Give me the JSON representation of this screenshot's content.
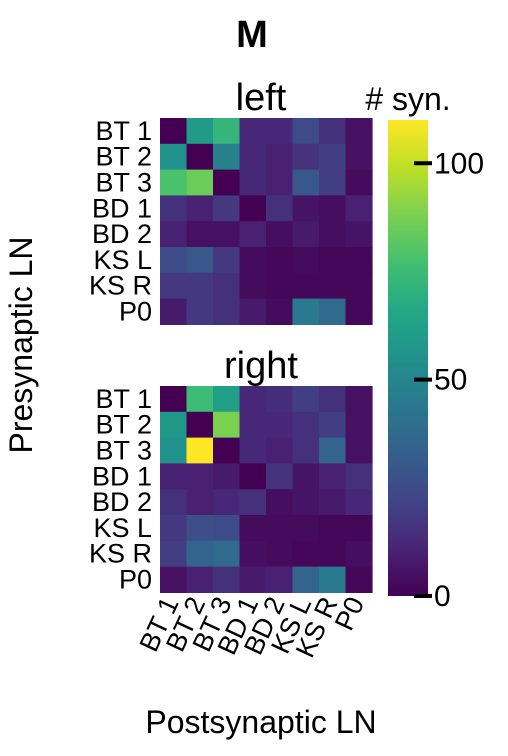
{
  "panel_letter": "M",
  "colorbar": {
    "title": "# syn.",
    "colormap": "viridis",
    "range": [
      0,
      110
    ],
    "ticks": [
      0,
      50,
      100
    ]
  },
  "axes": {
    "ylabel": "Presynaptic LN",
    "xlabel": "Postsynaptic LN"
  },
  "chart_data": {
    "type": "heatmap",
    "rows": [
      "BT 1",
      "BT 2",
      "BT 3",
      "BD 1",
      "BD 2",
      "KS L",
      "KS R",
      "P0"
    ],
    "columns": [
      "BT 1",
      "BT 2",
      "BT 3",
      "BD 1",
      "BD 2",
      "KS L",
      "KS R",
      "P0"
    ],
    "vmin": 0,
    "vmax": 110,
    "matrices": [
      {
        "title": "left",
        "values": [
          [
            0,
            60,
            72,
            12,
            12,
            25,
            15,
            5
          ],
          [
            55,
            0,
            48,
            12,
            10,
            16,
            20,
            5
          ],
          [
            78,
            85,
            0,
            12,
            10,
            30,
            20,
            3
          ],
          [
            15,
            10,
            18,
            0,
            15,
            6,
            4,
            10
          ],
          [
            10,
            5,
            5,
            10,
            4,
            8,
            4,
            6
          ],
          [
            25,
            30,
            18,
            3,
            2,
            3,
            2,
            2
          ],
          [
            18,
            18,
            15,
            3,
            2,
            2,
            2,
            2
          ],
          [
            8,
            18,
            15,
            8,
            3,
            45,
            38,
            2
          ]
        ]
      },
      {
        "title": "right",
        "values": [
          [
            0,
            75,
            62,
            12,
            14,
            20,
            15,
            5
          ],
          [
            58,
            0,
            88,
            12,
            12,
            15,
            20,
            5
          ],
          [
            55,
            110,
            0,
            12,
            10,
            15,
            35,
            5
          ],
          [
            10,
            10,
            8,
            0,
            16,
            6,
            10,
            15
          ],
          [
            15,
            10,
            12,
            15,
            4,
            6,
            8,
            12
          ],
          [
            18,
            26,
            25,
            3,
            3,
            3,
            2,
            2
          ],
          [
            20,
            35,
            38,
            4,
            3,
            2,
            2,
            4
          ],
          [
            5,
            10,
            15,
            8,
            10,
            35,
            45,
            2
          ]
        ]
      }
    ]
  }
}
